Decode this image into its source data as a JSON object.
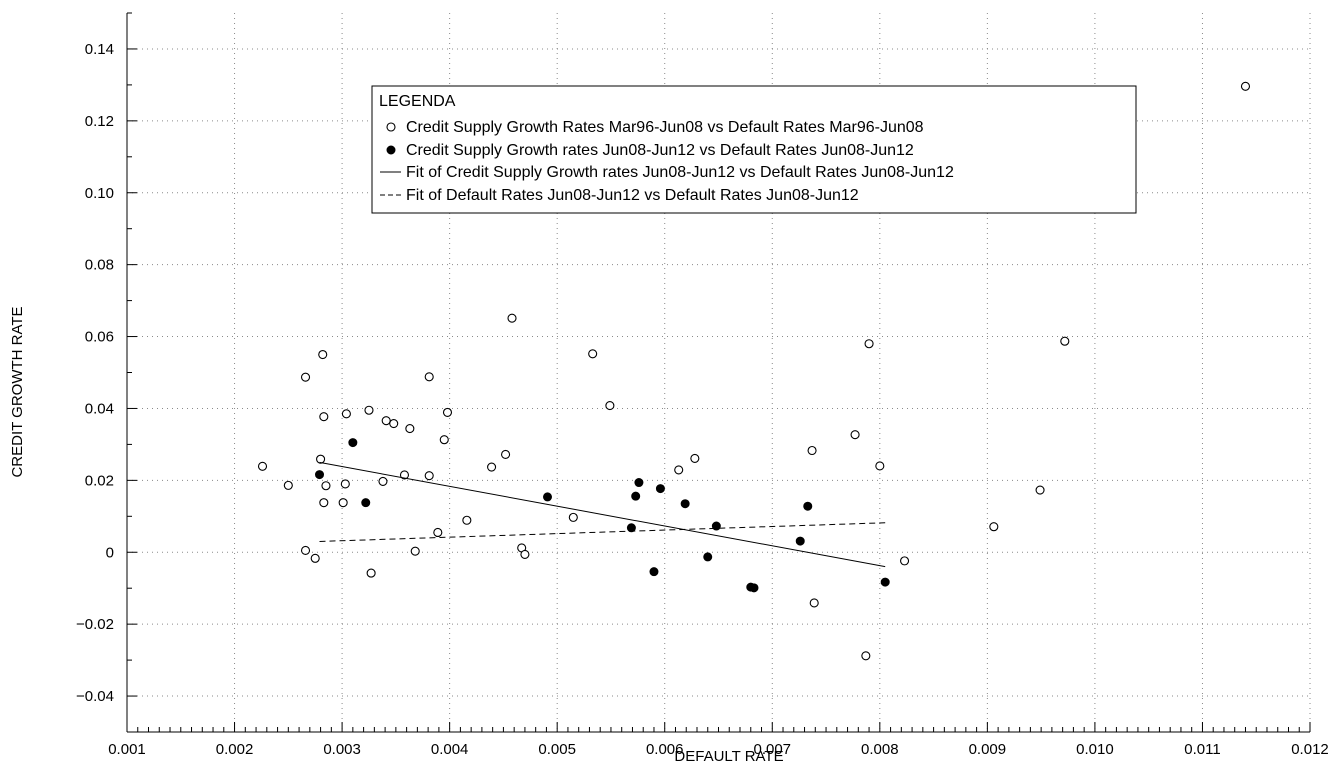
{
  "chart_data": {
    "type": "scatter",
    "xlabel": "DEFAULT RATE",
    "ylabel": "CREDIT GROWTH RATE",
    "xlim": [
      0.001,
      0.012
    ],
    "ylim": [
      -0.05,
      0.15
    ],
    "x_ticks": [
      0.001,
      0.002,
      0.003,
      0.004,
      0.005,
      0.006,
      0.007,
      0.008,
      0.009,
      0.01,
      0.011,
      0.012
    ],
    "x_tick_labels": [
      "0.001",
      "0.002",
      "0.003",
      "0.004",
      "0.005",
      "0.006",
      "0.007",
      "0.008",
      "0.009",
      "0.010",
      "0.011",
      "0.012"
    ],
    "y_ticks": [
      -0.04,
      -0.02,
      0,
      0.02,
      0.04,
      0.06,
      0.08,
      0.1,
      0.12,
      0.14
    ],
    "y_tick_labels": [
      "−0.04",
      "−0.02",
      "0",
      "0.02",
      "0.04",
      "0.06",
      "0.08",
      "0.10",
      "0.12",
      "0.14"
    ],
    "grid": true,
    "legend": {
      "title": "LEGENDA",
      "placement": "top-center",
      "entries": [
        "Credit Supply Growth Rates Mar96-Jun08 vs Default Rates Mar96-Jun08",
        "Credit Supply Growth rates Jun08-Jun12 vs Default Rates Jun08-Jun12",
        "Fit of Credit Supply Growth rates Jun08-Jun12 vs Default Rates Jun08-Jun12",
        "Fit of Default Rates Jun08-Jun12 vs Default Rates Jun08-Jun12"
      ]
    },
    "series": [
      {
        "name": "Credit Supply Growth Rates Mar96-Jun08 vs Default Rates Mar96-Jun08",
        "marker": "open-circle",
        "points": [
          [
            0.00226,
            0.0239
          ],
          [
            0.0025,
            0.0186
          ],
          [
            0.00266,
            0.0487
          ],
          [
            0.00266,
            0.0005
          ],
          [
            0.00275,
            -0.0017
          ],
          [
            0.0028,
            0.0259
          ],
          [
            0.00282,
            0.055
          ],
          [
            0.00283,
            0.0377
          ],
          [
            0.00283,
            0.0138
          ],
          [
            0.00285,
            0.0185
          ],
          [
            0.00301,
            0.0138
          ],
          [
            0.00303,
            0.019
          ],
          [
            0.00304,
            0.0385
          ],
          [
            0.00325,
            0.0395
          ],
          [
            0.00327,
            -0.0058
          ],
          [
            0.00338,
            0.0197
          ],
          [
            0.00341,
            0.0366
          ],
          [
            0.00348,
            0.0358
          ],
          [
            0.00358,
            0.0215
          ],
          [
            0.00363,
            0.0344
          ],
          [
            0.00368,
            0.0003
          ],
          [
            0.00381,
            0.0488
          ],
          [
            0.00381,
            0.0213
          ],
          [
            0.00389,
            0.0055
          ],
          [
            0.00395,
            0.0313
          ],
          [
            0.00398,
            0.0389
          ],
          [
            0.00416,
            0.0089
          ],
          [
            0.00439,
            0.0237
          ],
          [
            0.00452,
            0.0272
          ],
          [
            0.00458,
            0.0651
          ],
          [
            0.00467,
            0.0012
          ],
          [
            0.0047,
            -0.0006
          ],
          [
            0.00515,
            0.0097
          ],
          [
            0.00533,
            0.0552
          ],
          [
            0.00549,
            0.0408
          ],
          [
            0.00613,
            0.0229
          ],
          [
            0.00628,
            0.0261
          ],
          [
            0.00737,
            0.0283
          ],
          [
            0.00739,
            -0.0141
          ],
          [
            0.00777,
            0.0327
          ],
          [
            0.00787,
            -0.0288
          ],
          [
            0.0079,
            0.058
          ],
          [
            0.008,
            0.024
          ],
          [
            0.00823,
            -0.0024
          ],
          [
            0.00906,
            0.0071
          ],
          [
            0.00949,
            0.0173
          ],
          [
            0.00972,
            0.0587
          ],
          [
            0.0114,
            0.1296
          ]
        ]
      },
      {
        "name": "Credit Supply Growth rates Jun08-Jun12 vs Default Rates Jun08-Jun12",
        "marker": "filled-circle",
        "points": [
          [
            0.00279,
            0.0216
          ],
          [
            0.0031,
            0.0305
          ],
          [
            0.00322,
            0.0138
          ],
          [
            0.00491,
            0.0154
          ],
          [
            0.00569,
            0.0068
          ],
          [
            0.00573,
            0.0156
          ],
          [
            0.00576,
            0.0194
          ],
          [
            0.0059,
            -0.0054
          ],
          [
            0.00596,
            0.0177
          ],
          [
            0.00619,
            0.0135
          ],
          [
            0.0064,
            -0.0013
          ],
          [
            0.00648,
            0.0073
          ],
          [
            0.0068,
            -0.0097
          ],
          [
            0.00683,
            -0.0099
          ],
          [
            0.00726,
            0.0031
          ],
          [
            0.00733,
            0.0128
          ],
          [
            0.00805,
            -0.0083
          ]
        ]
      },
      {
        "name": "Fit of Credit Supply Growth rates Jun08-Jun12 vs Default Rates Jun08-Jun12",
        "style": "solid-line",
        "points": [
          [
            0.00279,
            0.025
          ],
          [
            0.00805,
            -0.004
          ]
        ]
      },
      {
        "name": "Fit of Default Rates Jun08-Jun12 vs Default Rates Jun08-Jun12",
        "style": "dashed-line",
        "points": [
          [
            0.00279,
            0.003
          ],
          [
            0.00805,
            0.0082
          ]
        ]
      }
    ]
  }
}
